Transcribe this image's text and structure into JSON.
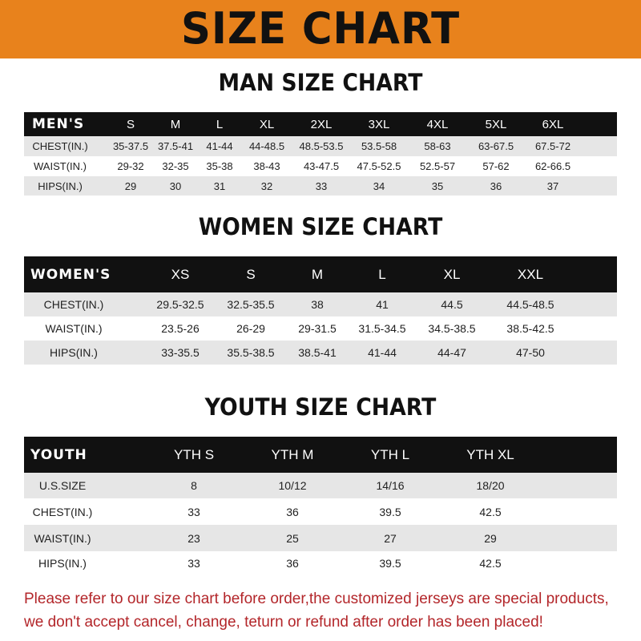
{
  "banner": {
    "title": "SIZE CHART",
    "color": "#e8821c"
  },
  "men": {
    "title": "MAN SIZE CHART",
    "header": [
      "MEN'S",
      "S",
      "M",
      "L",
      "XL",
      "2XL",
      "3XL",
      "4XL",
      "5XL",
      "6XL"
    ],
    "rows": [
      [
        "CHEST(IN.)",
        "35-37.5",
        "37.5-41",
        "41-44",
        "44-48.5",
        "48.5-53.5",
        "53.5-58",
        "58-63",
        "63-67.5",
        "67.5-72"
      ],
      [
        "WAIST(IN.)",
        "29-32",
        "32-35",
        "35-38",
        "38-43",
        "43-47.5",
        "47.5-52.5",
        "52.5-57",
        "57-62",
        "62-66.5"
      ],
      [
        "HIPS(IN.)",
        "29",
        "30",
        "31",
        "32",
        "33",
        "34",
        "35",
        "36",
        "37"
      ]
    ]
  },
  "women": {
    "title": "WOMEN SIZE CHART",
    "header": [
      "WOMEN'S",
      "XS",
      "S",
      "M",
      "L",
      "XL",
      "XXL"
    ],
    "rows": [
      [
        "CHEST(IN.)",
        "29.5-32.5",
        "32.5-35.5",
        "38",
        "41",
        "44.5",
        "44.5-48.5"
      ],
      [
        "WAIST(IN.)",
        "23.5-26",
        "26-29",
        "29-31.5",
        "31.5-34.5",
        "34.5-38.5",
        "38.5-42.5"
      ],
      [
        "HIPS(IN.)",
        "33-35.5",
        "35.5-38.5",
        "38.5-41",
        "41-44",
        "44-47",
        "47-50"
      ]
    ]
  },
  "youth": {
    "title": "YOUTH SIZE CHART",
    "header": [
      "YOUTH",
      "YTH S",
      "YTH M",
      "YTH L",
      "YTH XL"
    ],
    "rows": [
      [
        "U.S.SIZE",
        "8",
        "10/12",
        "14/16",
        "18/20"
      ],
      [
        "CHEST(IN.)",
        "33",
        "36",
        "39.5",
        "42.5"
      ],
      [
        "WAIST(IN.)",
        "23",
        "25",
        "27",
        "29"
      ],
      [
        "HIPS(IN.)",
        "33",
        "36",
        "39.5",
        "42.5"
      ]
    ]
  },
  "footer": {
    "line1": "Please refer to our size chart before order,the customized jerseys are special products,",
    "line2": "we don't accept cancel, change, teturn or refund after order has been placed!",
    "color": "#b3262a"
  }
}
